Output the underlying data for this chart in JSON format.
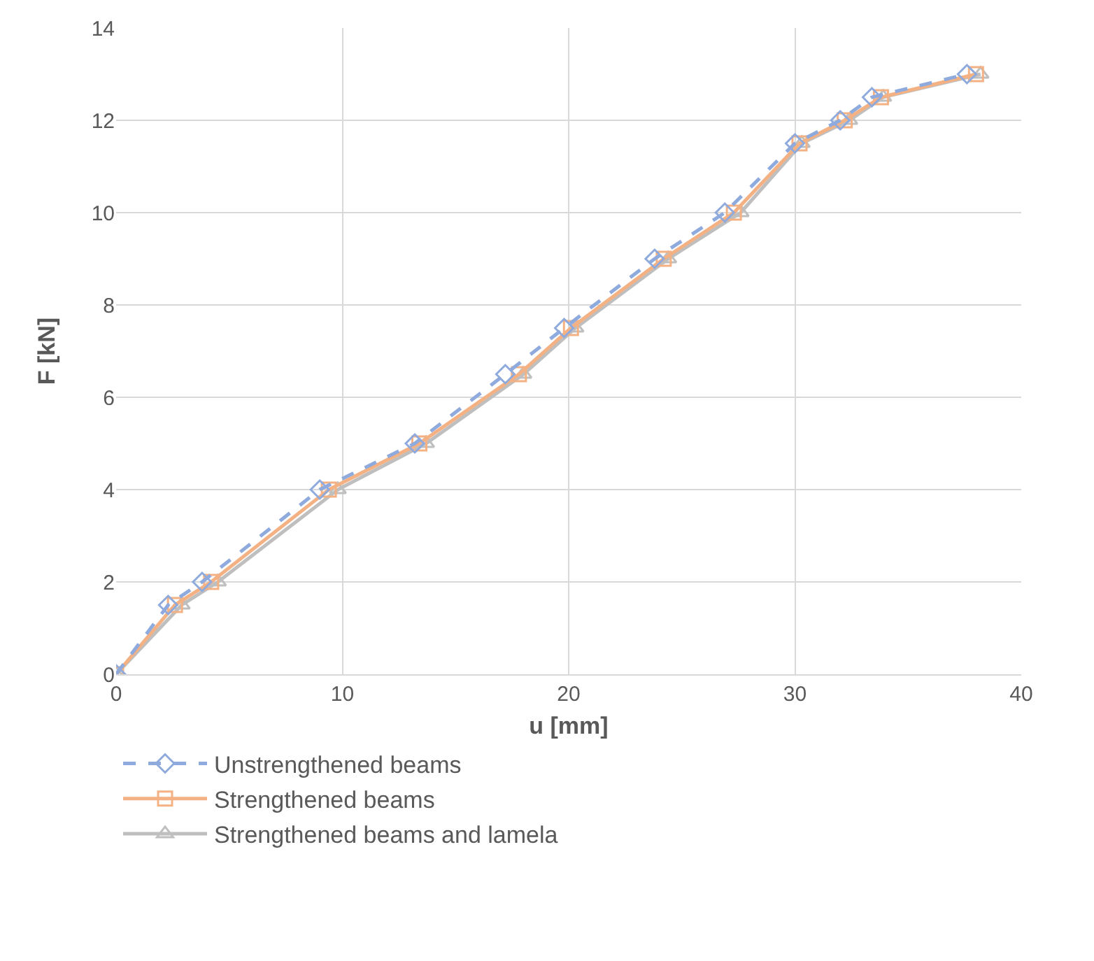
{
  "chart_data": {
    "type": "line",
    "xlabel": "u [mm]",
    "ylabel": "F [kN]",
    "xlim": [
      0,
      40
    ],
    "xticks": [
      0,
      10,
      20,
      30,
      40
    ],
    "ylim": [
      0,
      14
    ],
    "yticks": [
      0,
      2,
      4,
      6,
      8,
      10,
      12,
      14
    ],
    "grid": true,
    "legend": "bottom",
    "series": [
      {
        "name": "Unstrengthened beams",
        "color": "#8faadc",
        "marker": "diamond",
        "line_style": "dashed",
        "x": [
          0,
          2.3,
          3.8,
          9,
          13.2,
          17.2,
          19.8,
          23.8,
          26.9,
          30,
          32,
          33.4,
          37.6
        ],
        "values": [
          0,
          1.5,
          2,
          4,
          5,
          6.5,
          7.5,
          9,
          10,
          11.5,
          12,
          12.5,
          13
        ]
      },
      {
        "name": "Strengthened beams",
        "color": "#f4b183",
        "marker": "square",
        "line_style": "solid",
        "x": [
          0,
          2.6,
          4.2,
          9.4,
          13.4,
          17.8,
          20.1,
          24.2,
          27.3,
          30.2,
          32.2,
          33.8,
          38
        ],
        "values": [
          0,
          1.5,
          2,
          4,
          5,
          6.5,
          7.5,
          9,
          10,
          11.5,
          12,
          12.5,
          13
        ]
      },
      {
        "name": "Strengthened beams and lamela",
        "color": "#bfbfbf",
        "marker": "triangle",
        "line_style": "solid",
        "x": [
          0,
          2.9,
          4.5,
          9.8,
          13.7,
          18,
          20.3,
          24.4,
          27.6,
          30.3,
          32.4,
          33.9,
          38.2
        ],
        "values": [
          0,
          1.5,
          2,
          4,
          5,
          6.5,
          7.5,
          9,
          10,
          11.5,
          12,
          12.5,
          13
        ]
      }
    ]
  }
}
